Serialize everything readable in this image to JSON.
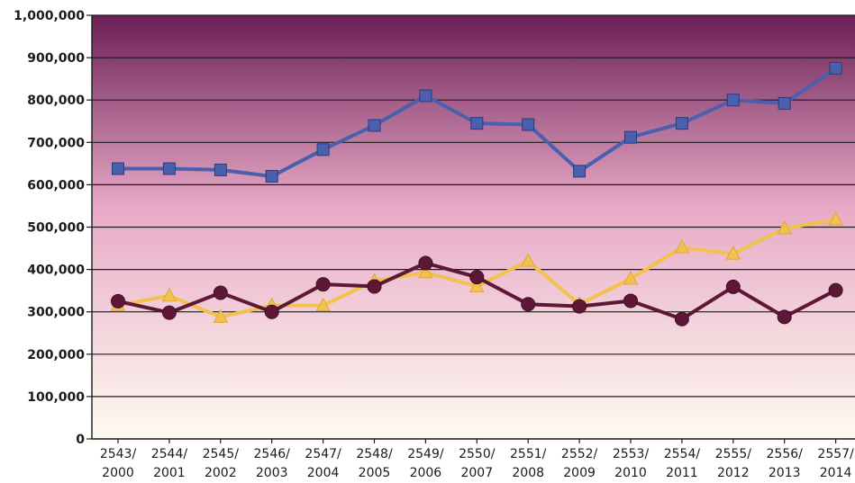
{
  "chart_data": {
    "type": "line",
    "title": "",
    "xlabel": "",
    "ylabel": "",
    "ylim": [
      0,
      1000000
    ],
    "yticks": [
      0,
      100000,
      200000,
      300000,
      400000,
      500000,
      600000,
      700000,
      800000,
      900000,
      1000000
    ],
    "ytick_labels": [
      "0",
      "100,000",
      "200,000",
      "300,000",
      "400,000",
      "500,000",
      "600,000",
      "700,000",
      "800,000",
      "900,000",
      "1,000,000"
    ],
    "categories": [
      [
        "2543/",
        "2000"
      ],
      [
        "2544/",
        "2001"
      ],
      [
        "2545/",
        "2002"
      ],
      [
        "2546/",
        "2003"
      ],
      [
        "2547/",
        "2004"
      ],
      [
        "2548/",
        "2005"
      ],
      [
        "2549/",
        "2006"
      ],
      [
        "2550/",
        "2007"
      ],
      [
        "2551/",
        "2008"
      ],
      [
        "2552/",
        "2009"
      ],
      [
        "2553/",
        "2010"
      ],
      [
        "2554/",
        "2011"
      ],
      [
        "2555/",
        "2012"
      ],
      [
        "2556/",
        "2013"
      ],
      [
        "2557/",
        "2014"
      ]
    ],
    "grid": true,
    "legend": "none",
    "background": {
      "top_color": "#6b1f55",
      "mid_color": "#e7a9c6",
      "bottom_color": "#fffbf1"
    },
    "series": [
      {
        "color": "#4a5fae",
        "marker": "square",
        "values": [
          638000,
          638000,
          635000,
          620000,
          683000,
          740000,
          810000,
          745000,
          742000,
          632000,
          712000,
          745000,
          800000,
          792000,
          875000
        ]
      },
      {
        "color": "#f2c24f",
        "marker": "triangle",
        "values": [
          315000,
          338000,
          288000,
          315000,
          315000,
          373000,
          393000,
          360000,
          420000,
          318000,
          378000,
          452000,
          437000,
          497000,
          518000
        ]
      },
      {
        "color": "#5e1737",
        "marker": "circle",
        "values": [
          325000,
          298000,
          345000,
          300000,
          365000,
          360000,
          415000,
          382000,
          318000,
          313000,
          326000,
          283000,
          359000,
          288000,
          351000
        ]
      }
    ]
  }
}
